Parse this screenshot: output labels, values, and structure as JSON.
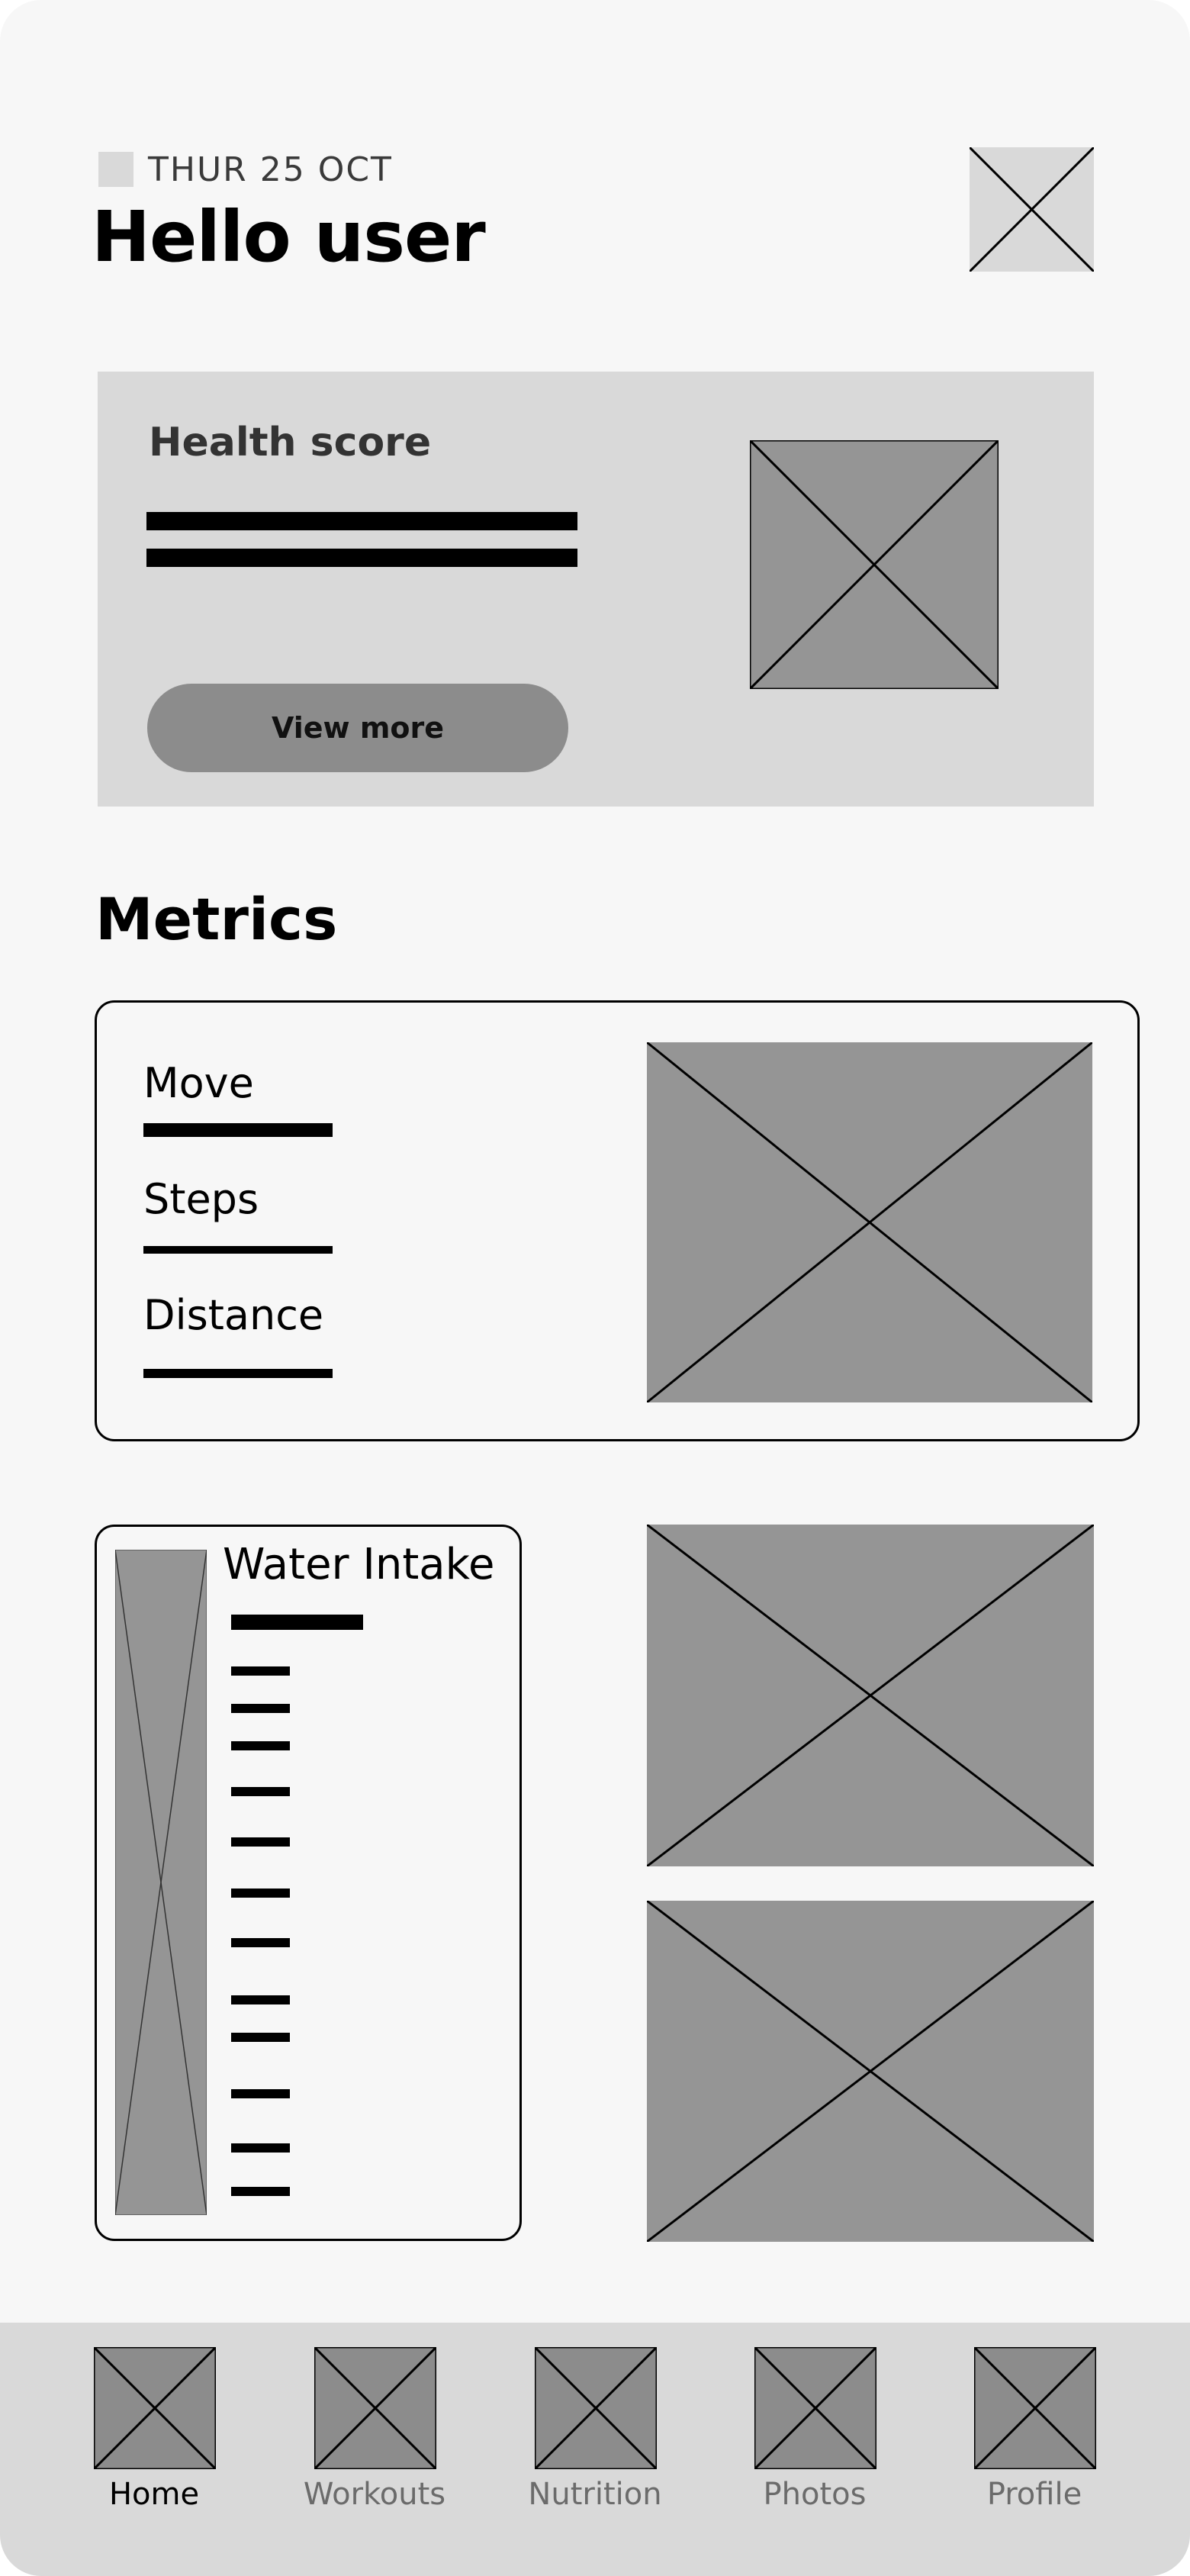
{
  "header": {
    "date": "THUR 25 OCT",
    "greeting": "Hello user",
    "avatar_icon": "image-placeholder-icon"
  },
  "health_card": {
    "title": "Health score",
    "button_label": "View more",
    "image_icon": "image-placeholder-icon"
  },
  "metrics": {
    "title": "Metrics",
    "items": [
      {
        "label": "Move"
      },
      {
        "label": "Steps"
      },
      {
        "label": "Distance"
      }
    ]
  },
  "water": {
    "title": "Water Intake"
  },
  "tab_bar": {
    "active": "Home",
    "tabs": [
      {
        "label": "Home",
        "icon": "home-icon"
      },
      {
        "label": "Workouts",
        "icon": "workouts-icon"
      },
      {
        "label": "Nutrition",
        "icon": "nutrition-icon"
      },
      {
        "label": "Photos",
        "icon": "photos-icon"
      },
      {
        "label": "Profile",
        "icon": "profile-icon"
      }
    ]
  },
  "colors": {
    "background": "#f7f7f7",
    "card_fill": "#d9d9d9",
    "placeholder_fill": "#959595",
    "button_fill": "#8c8c8c",
    "text_primary": "#000000",
    "text_muted": "#6b6b6b"
  }
}
